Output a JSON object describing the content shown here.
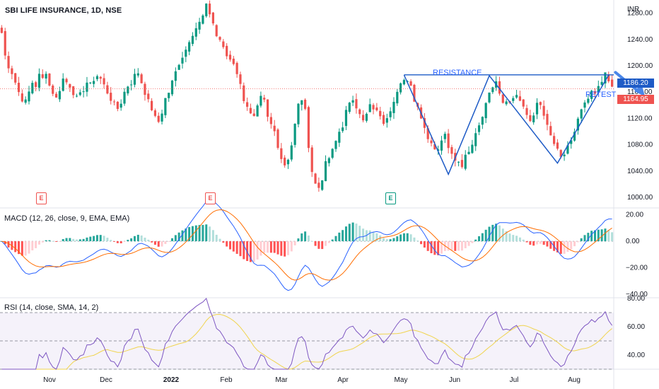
{
  "title": "SBI LIFE INSURANCE, 1D, NSE",
  "currency": "INR",
  "colors": {
    "up": "#089981",
    "down": "#ef5350",
    "annotation": "#2962ff",
    "macd": "#2962ff",
    "signal": "#ff6d00",
    "rsi": "#7e57c2",
    "rsi_ma": "#f0d44e"
  },
  "annotations": {
    "resistance": "RESISTANCE",
    "retest": "RETEST"
  },
  "price_tags": {
    "resistance": "1186.20",
    "last": "1164.95"
  },
  "earnings_markers": [
    "E",
    "E",
    "E"
  ],
  "panes": {
    "macd_label": "MACD (12, 26, close, 9, EMA, EMA)",
    "rsi_label": "RSI (14, close, SMA, 14, 2)"
  },
  "chart_data": [
    {
      "type": "candlestick",
      "title": "SBI LIFE INSURANCE, 1D, NSE",
      "x_ticks": [
        "Nov",
        "Dec",
        "2022",
        "Feb",
        "Mar",
        "Apr",
        "May",
        "Jun",
        "Jul",
        "Aug"
      ],
      "y_ticks": [
        "1280.00",
        "1240.00",
        "1200.00",
        "1160.00",
        "1120.00",
        "1080.00",
        "1040.00",
        "1000.00"
      ],
      "ylim": [
        985,
        1300
      ],
      "close_path": [
        1250,
        1215,
        1200,
        1190,
        1175,
        1160,
        1150,
        1145,
        1160,
        1175,
        1170,
        1185,
        1180,
        1192,
        1170,
        1160,
        1150,
        1165,
        1180,
        1175,
        1170,
        1160,
        1150,
        1155,
        1165,
        1175,
        1170,
        1180,
        1185,
        1180,
        1170,
        1160,
        1150,
        1140,
        1135,
        1145,
        1160,
        1170,
        1175,
        1185,
        1190,
        1175,
        1160,
        1145,
        1135,
        1120,
        1115,
        1130,
        1150,
        1160,
        1175,
        1190,
        1205,
        1215,
        1225,
        1240,
        1250,
        1258,
        1265,
        1275,
        1290,
        1280,
        1265,
        1245,
        1240,
        1225,
        1215,
        1210,
        1205,
        1190,
        1170,
        1150,
        1140,
        1125,
        1120,
        1135,
        1150,
        1145,
        1120,
        1110,
        1100,
        1080,
        1060,
        1050,
        1060,
        1080,
        1110,
        1140,
        1150,
        1130,
        1080,
        1040,
        1020,
        1015,
        1030,
        1050,
        1060,
        1070,
        1085,
        1100,
        1110,
        1130,
        1140,
        1150,
        1140,
        1130,
        1115,
        1125,
        1140,
        1130,
        1135,
        1120,
        1115,
        1125,
        1135,
        1150,
        1160,
        1170,
        1175,
        1180,
        1170,
        1150,
        1140,
        1120,
        1110,
        1090,
        1085,
        1075,
        1070,
        1090,
        1100,
        1080,
        1065,
        1060,
        1055,
        1050,
        1065,
        1070,
        1085,
        1095,
        1110,
        1120,
        1145,
        1155,
        1165,
        1175,
        1160,
        1145,
        1150,
        1140,
        1155,
        1160,
        1150,
        1140,
        1130,
        1115,
        1125,
        1145,
        1140,
        1120,
        1110,
        1095,
        1085,
        1070,
        1060,
        1065,
        1075,
        1085,
        1100,
        1115,
        1130,
        1145,
        1150,
        1160,
        1155,
        1165,
        1175,
        1185,
        1175,
        1165
      ],
      "resistance_level": 1186.2,
      "last_price": 1164.95,
      "pattern_points": [
        {
          "i": 118,
          "p": 1186
        },
        {
          "i": 131,
          "p": 1035
        },
        {
          "i": 143,
          "p": 1185
        },
        {
          "i": 163,
          "p": 1052
        },
        {
          "i": 178,
          "p": 1186
        }
      ],
      "resistance_x_range": [
        118,
        198
      ]
    },
    {
      "type": "macd",
      "title": "MACD (12, 26, close, 9, EMA, EMA)",
      "y_ticks": [
        "20.00",
        "0.00",
        "−20.00",
        "−40.00"
      ],
      "ylim": [
        -42,
        24
      ]
    },
    {
      "type": "rsi",
      "title": "RSI (14, close, SMA, 14, 2)",
      "y_ticks": [
        "80.00",
        "60.00",
        "40.00"
      ],
      "ylim": [
        30,
        80
      ],
      "bands": [
        70,
        50,
        30
      ]
    }
  ]
}
